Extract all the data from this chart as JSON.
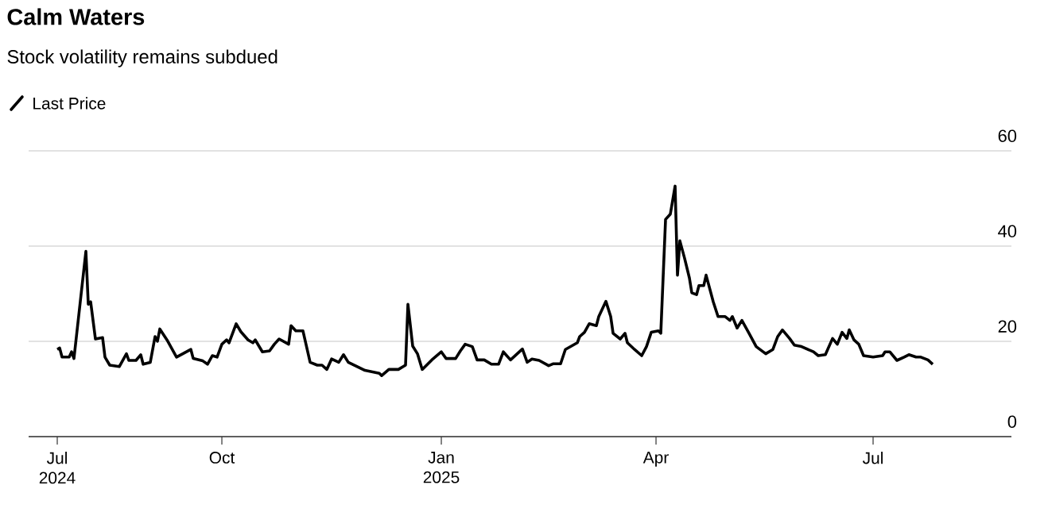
{
  "chart_data": {
    "type": "line",
    "title": "Calm Waters",
    "subtitle": "Stock volatility remains subdued",
    "x": [
      "2024-07-24",
      "2024-07-25",
      "2024-07-26",
      "2024-07-29",
      "2024-07-30",
      "2024-07-31",
      "2024-08-05",
      "2024-08-06",
      "2024-08-07",
      "2024-08-09",
      "2024-08-12",
      "2024-08-13",
      "2024-08-15",
      "2024-08-19",
      "2024-08-22",
      "2024-08-23",
      "2024-08-26",
      "2024-08-28",
      "2024-08-29",
      "2024-09-01",
      "2024-09-03",
      "2024-09-04",
      "2024-09-05",
      "2024-09-08",
      "2024-09-12",
      "2024-09-18",
      "2024-09-19",
      "2024-09-23",
      "2024-09-25",
      "2024-09-27",
      "2024-09-29",
      "2024-10-01",
      "2024-10-03",
      "2024-10-04",
      "2024-10-07",
      "2024-10-09",
      "2024-10-12",
      "2024-10-14",
      "2024-10-15",
      "2024-10-18",
      "2024-10-21",
      "2024-10-23",
      "2024-10-25",
      "2024-10-29",
      "2024-10-30",
      "2024-11-01",
      "2024-11-04",
      "2024-11-07",
      "2024-11-10",
      "2024-11-12",
      "2024-11-14",
      "2024-11-16",
      "2024-11-19",
      "2024-11-21",
      "2024-11-23",
      "2024-11-30",
      "2024-12-06",
      "2024-12-07",
      "2024-12-10",
      "2024-12-14",
      "2024-12-17",
      "2024-12-18",
      "2024-12-20",
      "2024-12-22",
      "2024-12-24",
      "2024-12-28",
      "2025-01-01",
      "2025-01-03",
      "2025-01-07",
      "2025-01-09",
      "2025-01-11",
      "2025-01-14",
      "2025-01-16",
      "2025-01-19",
      "2025-01-22",
      "2025-01-25",
      "2025-01-27",
      "2025-01-30",
      "2025-02-04",
      "2025-02-06",
      "2025-02-08",
      "2025-02-11",
      "2025-02-15",
      "2025-02-17",
      "2025-02-20",
      "2025-02-22",
      "2025-02-27",
      "2025-02-28",
      "2025-03-02",
      "2025-03-04",
      "2025-03-07",
      "2025-03-08",
      "2025-03-11",
      "2025-03-13",
      "2025-03-14",
      "2025-03-17",
      "2025-03-19",
      "2025-03-20",
      "2025-03-23",
      "2025-03-26",
      "2025-03-28",
      "2025-03-30",
      "2025-04-02",
      "2025-04-03",
      "2025-04-05",
      "2025-04-07",
      "2025-04-09",
      "2025-04-10",
      "2025-04-11",
      "2025-04-13",
      "2025-04-15",
      "2025-04-16",
      "2025-04-18",
      "2025-04-19",
      "2025-04-21",
      "2025-04-22",
      "2025-04-25",
      "2025-04-27",
      "2025-04-30",
      "2025-05-02",
      "2025-05-03",
      "2025-05-05",
      "2025-05-07",
      "2025-05-10",
      "2025-05-13",
      "2025-05-17",
      "2025-05-20",
      "2025-05-22",
      "2025-05-24",
      "2025-05-27",
      "2025-05-29",
      "2025-06-01",
      "2025-06-06",
      "2025-06-08",
      "2025-06-11",
      "2025-06-14",
      "2025-06-16",
      "2025-06-18",
      "2025-06-20",
      "2025-06-21",
      "2025-06-23",
      "2025-06-25",
      "2025-06-27",
      "2025-07-01",
      "2025-07-05",
      "2025-07-06",
      "2025-07-08",
      "2025-07-11",
      "2025-07-14",
      "2025-07-16",
      "2025-07-19",
      "2025-07-21",
      "2025-07-24",
      "2025-07-26"
    ],
    "series": [
      {
        "name": "Last Price",
        "color": "#000000",
        "values": [
          18.3,
          18.6,
          16.7,
          16.7,
          17.8,
          16.4,
          38.9,
          27.8,
          28.3,
          20.5,
          20.8,
          16.7,
          15,
          14.7,
          17.4,
          16,
          16,
          17.2,
          15.2,
          15.6,
          21,
          20,
          22.6,
          20.3,
          16.7,
          18.3,
          16.4,
          15.9,
          15.2,
          17,
          16.7,
          19.4,
          20.3,
          19.7,
          23.7,
          22,
          20.3,
          19.7,
          20.3,
          17.8,
          18,
          19.4,
          20.5,
          19.4,
          23.3,
          22.2,
          22.2,
          15.6,
          15,
          15,
          14.1,
          16.3,
          15.6,
          17.2,
          15.6,
          13.9,
          13.3,
          12.8,
          14.1,
          14.1,
          15,
          27.8,
          19,
          17.4,
          14.1,
          16.1,
          17.8,
          16.4,
          16.4,
          18,
          19.4,
          18.9,
          16.1,
          16.1,
          15.2,
          15.2,
          17.8,
          16.1,
          18.4,
          15.6,
          16.3,
          16,
          14.9,
          15.3,
          15.3,
          18.3,
          19.7,
          21,
          21.9,
          23.7,
          23.3,
          25.2,
          28.4,
          25.2,
          21.7,
          20.5,
          21.7,
          19.7,
          18.3,
          17,
          18.9,
          21.9,
          22.2,
          21.7,
          45.6,
          46.7,
          52.6,
          33.9,
          41.1,
          37.4,
          33.3,
          30.2,
          29.8,
          31.7,
          31.7,
          33.9,
          28.3,
          25.2,
          25.2,
          24.4,
          25.2,
          22.8,
          24.4,
          21.7,
          18.9,
          17.4,
          18.3,
          21,
          22.4,
          20.6,
          19.2,
          18.9,
          17.8,
          17,
          17.2,
          20.6,
          19.4,
          21.9,
          20.6,
          22.4,
          20.3,
          19.4,
          17,
          16.7,
          17,
          17.8,
          17.8,
          16,
          16.7,
          17.2,
          16.7,
          16.7,
          16.1,
          15.2
        ]
      }
    ],
    "xlim": [
      "2024-07-12",
      "2025-08-28"
    ],
    "xticks": [
      {
        "value": "2024-07-24",
        "label": "Jul 2024"
      },
      {
        "value": "2024-10-01",
        "label": "Oct"
      },
      {
        "value": "2025-01-01",
        "label": "Jan 2025"
      },
      {
        "value": "2025-04-01",
        "label": "Apr"
      },
      {
        "value": "2025-07-01",
        "label": "Jul"
      }
    ],
    "ylim": [
      0,
      60
    ],
    "yticks": [
      0,
      20,
      40,
      60
    ],
    "grid": "y",
    "legend": "top"
  }
}
